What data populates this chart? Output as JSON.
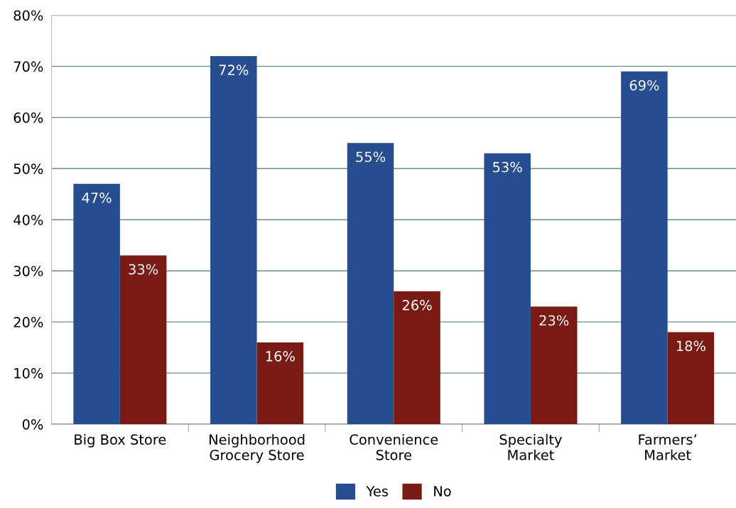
{
  "chart_data": {
    "type": "bar",
    "categories": [
      "Big Box Store",
      "Neighborhood\nGrocery Store",
      "Convenience\nStore",
      "Specialty\nMarket",
      "Farmers’\nMarket"
    ],
    "series": [
      {
        "name": "Yes",
        "color": "#264d8f",
        "values": [
          47,
          72,
          55,
          53,
          69
        ],
        "value_labels": [
          "47%",
          "72%",
          "55%",
          "53%",
          "69%"
        ]
      },
      {
        "name": "No",
        "color": "#7a1a14",
        "values": [
          33,
          16,
          26,
          23,
          18
        ],
        "value_labels": [
          "33%",
          "16%",
          "26%",
          "23%",
          "18%"
        ]
      }
    ],
    "ylim": [
      0,
      80
    ],
    "yticks": [
      {
        "value": 0,
        "label": "0%"
      },
      {
        "value": 10,
        "label": "10%"
      },
      {
        "value": 20,
        "label": "20%"
      },
      {
        "value": 30,
        "label": "30%"
      },
      {
        "value": 40,
        "label": "40%"
      },
      {
        "value": 50,
        "label": "50%"
      },
      {
        "value": 60,
        "label": "60%"
      },
      {
        "value": 70,
        "label": "70%"
      },
      {
        "value": 80,
        "label": "80%"
      }
    ],
    "grid": "y",
    "legend": "bottom"
  }
}
